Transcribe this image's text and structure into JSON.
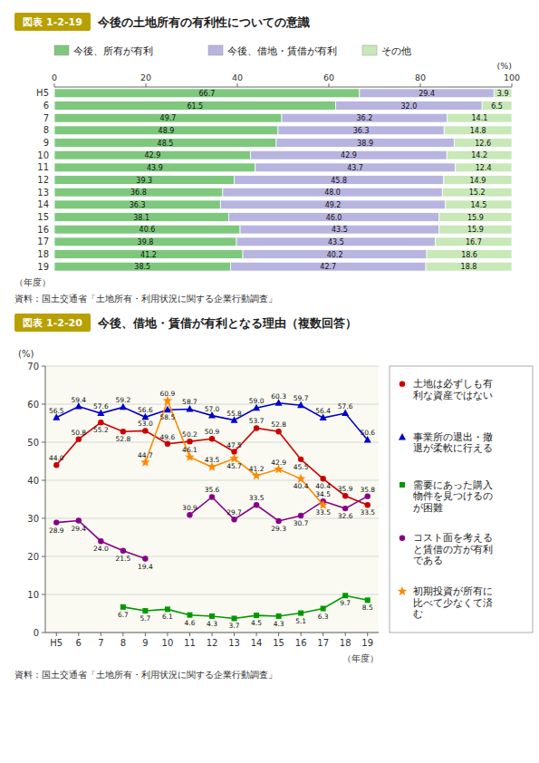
{
  "chart_data": [
    {
      "type": "bar",
      "orientation": "horizontal",
      "stacked": true,
      "title": "今後の土地所有の有利性についての意識",
      "annotations": [
        "図表 1-2-19",
        "資料：国土交通省「土地所有・利用状況に関する企業行動調査」"
      ],
      "xlabel": "(%)",
      "ylabel": "（年度）",
      "categories": [
        "H5",
        "6",
        "7",
        "8",
        "9",
        "10",
        "11",
        "12",
        "13",
        "14",
        "15",
        "16",
        "17",
        "18",
        "19"
      ],
      "series": [
        {
          "name": "今後、所有が有利",
          "color": "#7dc87d",
          "values": [
            66.7,
            61.5,
            49.7,
            48.9,
            48.5,
            42.9,
            43.9,
            39.3,
            36.8,
            36.3,
            38.1,
            40.6,
            39.8,
            41.2,
            38.5
          ],
          "value_labels": [
            "66.7",
            "61.5",
            "49.7",
            "48.9",
            "48.5",
            "42.9",
            "43.9",
            "39.3",
            "36.8",
            "36.3",
            "38.1",
            "40.6",
            "39.8",
            "41.2",
            "38.5"
          ]
        },
        {
          "name": "今後、借地・賃借が有利",
          "color": "#b8b4e0",
          "values": [
            29.4,
            32.0,
            36.2,
            36.3,
            38.9,
            42.9,
            43.7,
            45.8,
            48.0,
            49.2,
            46.0,
            43.5,
            43.5,
            40.2,
            42.7
          ],
          "value_labels": [
            "29.4",
            "32.0",
            "36.2",
            "36.3",
            "38.9",
            "42.9",
            "43.7",
            "45.8",
            "48.0",
            "49.2",
            "46.0",
            "43.5",
            "43.5",
            "40.2",
            "42.7"
          ]
        },
        {
          "name": "その他",
          "color": "#c8e8b8",
          "values": [
            3.9,
            6.5,
            14.1,
            14.8,
            12.6,
            14.2,
            12.4,
            14.9,
            15.2,
            14.5,
            15.9,
            15.9,
            16.7,
            18.6,
            18.8
          ],
          "value_labels": [
            "3.9",
            "6.5",
            "14.1",
            "14.8",
            "12.6",
            "14.2",
            "12.4",
            "14.9",
            "15.2",
            "14.5",
            "15.9",
            "15.9",
            "16.7",
            "18.6",
            "18.8"
          ]
        }
      ],
      "xlim": [
        0,
        100
      ],
      "xticks": [
        0,
        20,
        40,
        60,
        80,
        100
      ],
      "grid": false,
      "legend": "top",
      "data_labels": true
    },
    {
      "type": "line",
      "title": "今後、借地・賃借が有利となる理由（複数回答）",
      "annotations": [
        "図表 1-2-20",
        "資料：国土交通省「土地所有・利用状況に関する企業行動調査」"
      ],
      "xlabel": "（年度）",
      "ylabel": "(%)",
      "categories": [
        "H5",
        "6",
        "7",
        "8",
        "9",
        "10",
        "11",
        "12",
        "13",
        "14",
        "15",
        "16",
        "17",
        "18",
        "19"
      ],
      "series": [
        {
          "name": "土地は必ずしも有\n利な資産ではない",
          "color": "#cc0000",
          "marker": "circle",
          "line_style": "solid",
          "values": [
            44.0,
            50.8,
            55.2,
            52.8,
            53.0,
            49.6,
            50.2,
            50.9,
            47.5,
            53.7,
            52.8,
            45.5,
            40.4,
            35.9,
            33.5
          ],
          "value_labels": [
            "44.0",
            "50.8",
            "55.2",
            "52.8",
            "53.0",
            "49.6",
            "50.2",
            "50.9",
            "47.5",
            "53.7",
            "52.8",
            "45.5",
            "40.4",
            "35.9",
            "33.5"
          ]
        },
        {
          "name": "事業所の退出・撤\n退が柔軟に行える",
          "color": "#0000cc",
          "marker": "triangle",
          "line_style": "solid",
          "values": [
            56.5,
            59.4,
            57.6,
            59.2,
            56.6,
            58.5,
            58.7,
            57.0,
            55.8,
            59.0,
            60.3,
            59.7,
            56.4,
            57.6,
            50.6
          ],
          "value_labels": [
            "56.5",
            "59.4",
            "57.6",
            "59.2",
            "56.6",
            "58.5",
            "58.7",
            "57.0",
            "55.8",
            "59.0",
            "60.3",
            "59.7",
            "56.4",
            "57.6",
            "50.6"
          ]
        },
        {
          "name": "需要にあった購入\n物件を見つけるの\nが困難",
          "color": "#009900",
          "marker": "square",
          "line_style": "solid",
          "values": [
            null,
            null,
            null,
            6.7,
            5.7,
            6.1,
            4.6,
            4.3,
            3.7,
            4.5,
            4.3,
            5.1,
            6.3,
            9.7,
            8.5
          ],
          "value_labels": [
            null,
            null,
            null,
            "6.7",
            "5.7",
            "6.1",
            "4.6",
            "4.3",
            "3.7",
            "4.5",
            "4.3",
            "5.1",
            "6.3",
            "9.7",
            "8.5"
          ]
        },
        {
          "name": "コスト面を考える\nと賃借の方が有利\nである",
          "color": "#880088",
          "marker": "circle",
          "line_style": "solid",
          "values": [
            28.9,
            29.4,
            24.0,
            21.5,
            19.4,
            null,
            30.9,
            35.6,
            29.7,
            33.5,
            29.3,
            30.7,
            34.5,
            32.6,
            35.8
          ],
          "value_labels": [
            "28.9",
            "29.4",
            "24.0",
            "21.5",
            "19.4",
            null,
            "30.9",
            "35.6",
            "29.7",
            "33.5",
            "29.3",
            "30.7",
            "34.5",
            "32.6",
            "35.8"
          ]
        },
        {
          "name": "初期投資が所有に\n比べて少なくて済\nむ",
          "color": "#ff8800",
          "marker": "star",
          "line_style": "solid",
          "values": [
            null,
            null,
            null,
            null,
            44.7,
            60.9,
            46.1,
            43.5,
            45.7,
            41.2,
            42.9,
            40.4,
            33.5,
            null,
            null
          ],
          "value_labels": [
            null,
            null,
            null,
            null,
            "44.7",
            "60.9",
            "46.1",
            "43.5",
            "45.7",
            "41.2",
            "42.9",
            "40.4",
            "33.5",
            null,
            null
          ]
        }
      ],
      "ylim": [
        0,
        70
      ],
      "yticks": [
        0,
        10,
        20,
        30,
        40,
        50,
        60,
        70
      ],
      "grid": true,
      "legend": "right",
      "data_labels": true
    }
  ]
}
